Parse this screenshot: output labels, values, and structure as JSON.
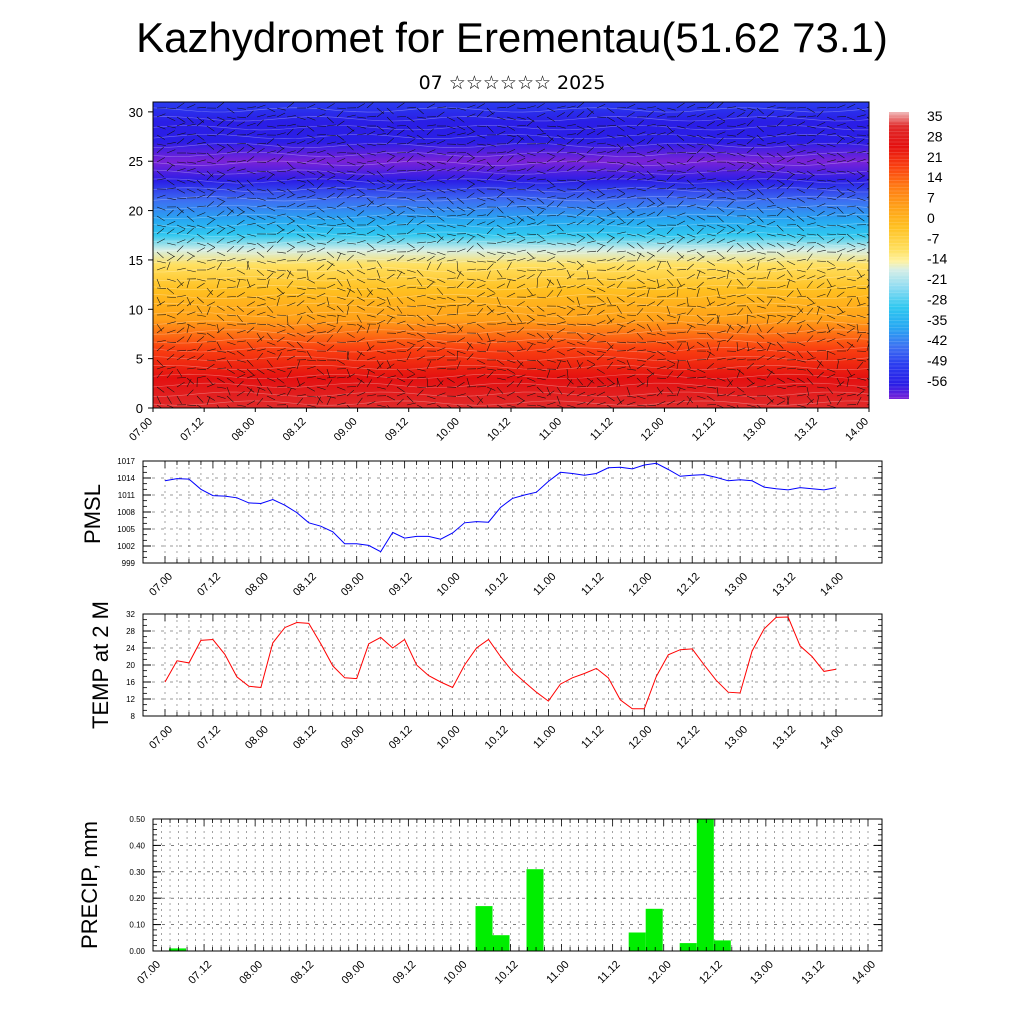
{
  "title": "Kazhydromet for Erementau(51.62 73.1)",
  "subtitle": "07 ☆☆☆☆☆☆ 2025",
  "colors": {
    "pmsl_line": "#0000ff",
    "temp_line": "#ff0000",
    "precip_bar": "#00ee00",
    "wind_barb": "#111111"
  },
  "chart_data": [
    {
      "type": "heatmap",
      "title": "",
      "xlabel": "",
      "ylabel": "",
      "x_tick_labels": [
        "07.00",
        "07.12",
        "08.00",
        "08.12",
        "09.00",
        "09.12",
        "10.00",
        "10.12",
        "11.00",
        "11.12",
        "12.00",
        "12.12",
        "13.00",
        "13.12",
        "14.00"
      ],
      "y_ticks": [
        0,
        5,
        10,
        15,
        20,
        25,
        30
      ],
      "ylim": [
        0,
        31
      ],
      "colorbar_labels": [
        "35",
        "28",
        "21",
        "14",
        "7",
        "0",
        "-7",
        "-14",
        "-21",
        "-28",
        "-35",
        "-42",
        "-49",
        "-56"
      ],
      "colorbar_range": [
        -60,
        40
      ],
      "profile_temperature": [
        {
          "height": 0,
          "temp": 33
        },
        {
          "height": 3,
          "temp": 26
        },
        {
          "height": 6,
          "temp": 18
        },
        {
          "height": 9,
          "temp": 10
        },
        {
          "height": 12,
          "temp": 3
        },
        {
          "height": 14.5,
          "temp": -5
        },
        {
          "height": 16,
          "temp": -15
        },
        {
          "height": 17.5,
          "temp": -25
        },
        {
          "height": 19,
          "temp": -33
        },
        {
          "height": 21,
          "temp": -42
        },
        {
          "height": 23,
          "temp": -52
        },
        {
          "height": 25,
          "temp": -59
        },
        {
          "height": 27,
          "temp": -56
        },
        {
          "height": 29,
          "temp": -52
        },
        {
          "height": 31,
          "temp": -50
        }
      ]
    },
    {
      "type": "line",
      "ylabel": "PMSL",
      "ylim": [
        999,
        1017
      ],
      "y_ticks": [
        999,
        1002,
        1005,
        1008,
        1011,
        1014,
        1017
      ],
      "x_tick_labels": [
        "07.00",
        "07.12",
        "08.00",
        "08.12",
        "09.00",
        "09.12",
        "10.00",
        "10.12",
        "11.00",
        "11.12",
        "12.00",
        "12.12",
        "13.00",
        "13.12",
        "14.00"
      ],
      "series": [
        {
          "values": [
            1013.5,
            1013.9,
            1013.8,
            1012.0,
            1010.9,
            1010.8,
            1010.5,
            1009.6,
            1009.5,
            1010.2,
            1009.2,
            1007.9,
            1006.1,
            1005.5,
            1004.5,
            1002.4,
            1002.4,
            1002.1,
            1001.0,
            1004.4,
            1003.4,
            1003.7,
            1003.7,
            1003.2,
            1004.3,
            1006.1,
            1006.3,
            1006.2,
            1008.8,
            1010.4,
            1011.0,
            1011.5,
            1013.4,
            1015.0,
            1014.8,
            1014.5,
            1014.8,
            1015.8,
            1015.9,
            1015.6,
            1016.3,
            1016.6,
            1015.5,
            1014.3,
            1014.5,
            1014.6,
            1014.1,
            1013.5,
            1013.7,
            1013.5,
            1012.4,
            1012.1,
            1011.9,
            1012.3,
            1012.1,
            1011.9,
            1012.3
          ]
        }
      ]
    },
    {
      "type": "line",
      "ylabel": "TEMP at 2 M",
      "ylim": [
        8,
        32
      ],
      "y_ticks": [
        8,
        12,
        16,
        20,
        24,
        28,
        32
      ],
      "x_tick_labels": [
        "07.00",
        "07.12",
        "08.00",
        "08.12",
        "09.00",
        "09.12",
        "10.00",
        "10.12",
        "11.00",
        "11.12",
        "12.00",
        "12.12",
        "13.00",
        "13.12",
        "14.00"
      ],
      "series": [
        {
          "values": [
            16.0,
            21.0,
            20.5,
            25.8,
            26.0,
            22.5,
            17.2,
            15.0,
            14.7,
            25.2,
            28.8,
            30.0,
            29.8,
            25.0,
            19.8,
            17.0,
            16.8,
            25.0,
            26.5,
            24.0,
            26.0,
            20.0,
            17.5,
            16.0,
            14.7,
            20.0,
            24.0,
            26.0,
            22.0,
            18.5,
            16.0,
            13.6,
            11.5,
            15.5,
            17.0,
            18.0,
            19.2,
            17.0,
            11.8,
            9.7,
            9.7,
            17.3,
            22.4,
            23.6,
            23.8,
            20.0,
            16.4,
            13.6,
            13.4,
            23.3,
            28.5,
            31.2,
            31.3,
            24.5,
            22.0,
            18.5,
            19.0
          ]
        }
      ]
    },
    {
      "type": "bar",
      "ylabel": "PRECIP, mm",
      "ylim": [
        0,
        0.5
      ],
      "y_tick_labels": [
        "0.00",
        "0.10",
        "0.20",
        "0.30",
        "0.40",
        "0.50"
      ],
      "x_tick_labels": [
        "07.00",
        "07.12",
        "08.00",
        "08.12",
        "09.00",
        "09.12",
        "10.00",
        "10.12",
        "11.00",
        "11.12",
        "12.00",
        "12.12",
        "13.00",
        "13.12",
        "14.00"
      ],
      "bars": [
        {
          "x": 2,
          "value": 0.01
        },
        {
          "x": 38,
          "value": 0.17
        },
        {
          "x": 40,
          "value": 0.06
        },
        {
          "x": 44,
          "value": 0.31
        },
        {
          "x": 56,
          "value": 0.07
        },
        {
          "x": 58,
          "value": 0.16
        },
        {
          "x": 62,
          "value": 0.03
        },
        {
          "x": 64,
          "value": 0.5
        },
        {
          "x": 66,
          "value": 0.04
        }
      ]
    }
  ]
}
